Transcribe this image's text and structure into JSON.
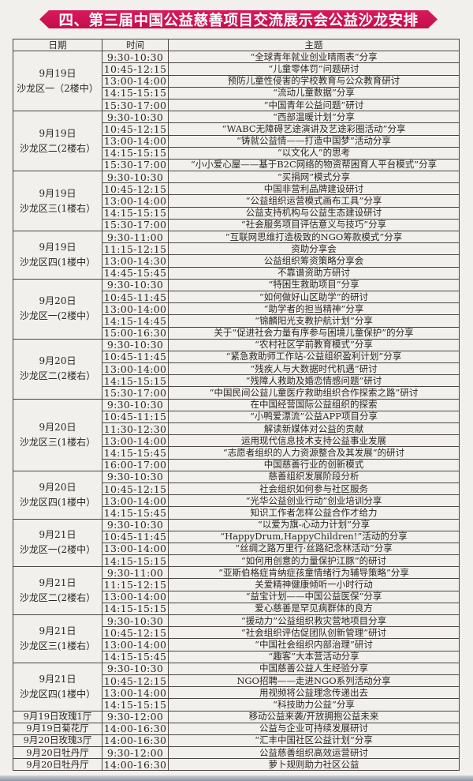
{
  "title": "四、第三届中国公益慈善项目交流展示会公益沙龙安排",
  "headers": {
    "date": "日期",
    "time": "时间",
    "topic": "主题"
  },
  "groups": [
    {
      "date": "9月19日",
      "room": "沙龙区一（2楼中）",
      "sessions": [
        {
          "time": "9:30-10:30",
          "topic": "“全球青年就业创业晴雨表”分享"
        },
        {
          "time": "10:45-12:15",
          "topic": "“儿童零体罚”问题研讨"
        },
        {
          "time": "13:00-14:00",
          "topic": "预防儿童性侵害的学校教育与公众教育研讨"
        },
        {
          "time": "14:15-15:15",
          "topic": "“流动儿童数据”分享"
        },
        {
          "time": "15:30-17:00",
          "topic": "“中国青年公益问题”研讨"
        }
      ]
    },
    {
      "date": "9月19日",
      "room": "沙龙区二(2楼右）",
      "sessions": [
        {
          "time": "9:30-10:30",
          "topic": "“西部温暖计划”分享"
        },
        {
          "time": "10:45-12:15",
          "topic": "“WABC无障碍艺途演讲及艺途彩圈活动”分享"
        },
        {
          "time": "13:00-14:00",
          "topic": "“铸就公益情——打造中国梦”活动分享"
        },
        {
          "time": "14:15-15:15",
          "topic": "“以文化人”的思考"
        },
        {
          "time": "15:30-17:00",
          "topic": "“小小爱心屋——基于B2C网络的物资帮困育人平台模式”分享"
        }
      ]
    },
    {
      "date": "9月19日",
      "room": "沙龙区三(1楼右）",
      "sessions": [
        {
          "time": "9:30-10:30",
          "topic": "“买捐网”模式分享"
        },
        {
          "time": "10:45-12:15",
          "topic": "中国非营利品牌建设研讨"
        },
        {
          "time": "13:00-14:00",
          "topic": "“公益组织运营模式画布工具”分享"
        },
        {
          "time": "14:15-15:15",
          "topic": "公益支持机构与公益生态建设研讨"
        },
        {
          "time": "15:30-17:00",
          "topic": "“社会服务项目评估意义与技巧”分享"
        }
      ]
    },
    {
      "date": "9月19日",
      "room": "沙龙区四(1楼中）",
      "sessions": [
        {
          "time": "9:30-11:00",
          "topic": "“互联网思维打造极致的NGO筹款模式”分享"
        },
        {
          "time": "11:15-12:15",
          "topic": "资助分享会"
        },
        {
          "time": "13:00-14:30",
          "topic": "公益组织筹资策略分享会"
        },
        {
          "time": "14:45-15:45",
          "topic": "不靠谱资助方研讨"
        }
      ]
    },
    {
      "date": "9月20日",
      "room": "沙龙区一(2楼中）",
      "sessions": [
        {
          "time": "9:30-10:30",
          "topic": "“特困生救助项目”分享"
        },
        {
          "time": "10:45-11:45",
          "topic": "“如何做好山区助学”的研讨"
        },
        {
          "time": "13:00-14:00",
          "topic": "“助学者的担当精神”分享"
        },
        {
          "time": "14:15-14:45",
          "topic": "“锦麟阳光支教护航计划”分享"
        },
        {
          "time": "15:00-16:30",
          "topic": "关于“促进社会力量有序参与困境儿童保护”的分享"
        }
      ]
    },
    {
      "date": "9月20日",
      "room": "沙龙区二(2楼右）",
      "sessions": [
        {
          "time": "9:30-10:30",
          "topic": "“农村社区学前教育模式”分享"
        },
        {
          "time": "10:45-11:45",
          "topic": "“紧急救助师工作站-公益组织盈利计划”分享"
        },
        {
          "time": "13:00-14:00",
          "topic": "“残疾人与大数据时代机遇”研讨"
        },
        {
          "time": "14:15-15:15",
          "topic": "“残障人救助及婚恋情感问题”研讨"
        },
        {
          "time": "15:30-17:00",
          "topic": "“中国民间公益儿童医疗救助组织合作探索之路”研讨"
        }
      ]
    },
    {
      "date": "9月20日",
      "room": "沙龙区三(1楼右）",
      "sessions": [
        {
          "time": "9:30-10:30",
          "topic": "在中国经营国际公益组织的探索"
        },
        {
          "time": "10:45-11:15",
          "topic": "“小鸭爱漂流”公益APP项目分享"
        },
        {
          "time": "11:30-12:30",
          "topic": "解读新媒体对公益的贡献"
        },
        {
          "time": "13:00-14:00",
          "topic": "运用现代信息技术支持公益事业发展"
        },
        {
          "time": "14:15-15:45",
          "topic": "“志愿者组织的人力资源整合及其发展”的研讨"
        },
        {
          "time": "16:00-17:00",
          "topic": "中国慈善行业的创新模式"
        }
      ]
    },
    {
      "date": "9月20日",
      "room": "沙龙区四(1楼中）",
      "sessions": [
        {
          "time": "9:30-10:30",
          "topic": "慈善组织发展阶段分析"
        },
        {
          "time": "10:45-12:15",
          "topic": "社会组织如何参与社区服务"
        },
        {
          "time": "13:00-14:00",
          "topic": "“光华公益创业行动”创业培训分享"
        },
        {
          "time": "14:15-15:45",
          "topic": "知识工作者怎样公益合作才给力"
        }
      ]
    },
    {
      "date": "9月21日",
      "room": "沙龙区一(2楼中）",
      "sessions": [
        {
          "time": "9:30-10:30",
          "topic": "“以爱为旗-心动力计划”分享"
        },
        {
          "time": "10:45-11:45",
          "topic": "“HappyDrum,HappyChildren!”活动的分享"
        },
        {
          "time": "13:00-14:00",
          "topic": "“丝绸之路万里行·丝路纪念林活动”分享"
        },
        {
          "time": "14:15-15:15",
          "topic": "“如何用创意的力量保护江豚”的研讨"
        }
      ]
    },
    {
      "date": "9月21日",
      "room": "沙龙区二(2楼右）",
      "sessions": [
        {
          "time": "9:30-11:00",
          "topic": "“亚斯伯格症肯纳症孩童情绪行为辅导策略”分享"
        },
        {
          "time": "11:15-12:15",
          "topic": "关爱精神健康倾听一小时行动"
        },
        {
          "time": "13:00-14:00",
          "topic": "“益宝计划——中国公益医保”分享"
        },
        {
          "time": "14:15-15:15",
          "topic": "爱心慈善是罕见病群体的良方"
        }
      ]
    },
    {
      "date": "9月21日",
      "room": "沙龙区三(1楼右）",
      "sessions": [
        {
          "time": "9:30-10:30",
          "topic": "“援动力”公益组织救灾营地项目分享"
        },
        {
          "time": "10:45-12:15",
          "topic": "“社会组织评估促团队创新管理”研讨"
        },
        {
          "time": "13:00-14:00",
          "topic": "“中国社会组织内部治理”研讨"
        },
        {
          "time": "14:15-15:45",
          "topic": "“趣客”大本营活动分享"
        }
      ]
    },
    {
      "date": "9月21日",
      "room": "沙龙区四(1楼中）",
      "sessions": [
        {
          "time": "9:30-10:30",
          "topic": "中国慈善公益人生经验分享"
        },
        {
          "time": "10:45-12:15",
          "topic": "NGO招聘——走进NGO系列活动分享"
        },
        {
          "time": "13:00-14:00",
          "topic": "用视频将公益理念传递出去"
        },
        {
          "time": "14:15-15:15",
          "topic": "“科技助力公益”分享"
        }
      ]
    }
  ],
  "single_rows": [
    {
      "venue": "9月19日玫瑰1厅",
      "time": "9:30-12:00",
      "topic": "移动公益来袭/开放拥抱公益未来"
    },
    {
      "venue": "9月19日菊花厅",
      "time": "14:00-16:30",
      "topic": "公益与企业可持续发展研讨"
    },
    {
      "venue": "9月20日玫瑰3厅",
      "time": "14:00-16:30",
      "topic": "“汇丰中国社区公益计划”分享"
    },
    {
      "venue": "9月20日牡丹厅",
      "time": "9:30-12:00",
      "topic": "公益慈善组织高效运营研讨"
    },
    {
      "venue": "9月20日牡丹厅",
      "time": "14:00-16:30",
      "topic": "萝卜规则助力社区公益"
    }
  ],
  "colors": {
    "banner": "#c8114f",
    "banner_text": "#ffffff",
    "paper": "#f2f0ec",
    "rule": "#4a4544"
  }
}
